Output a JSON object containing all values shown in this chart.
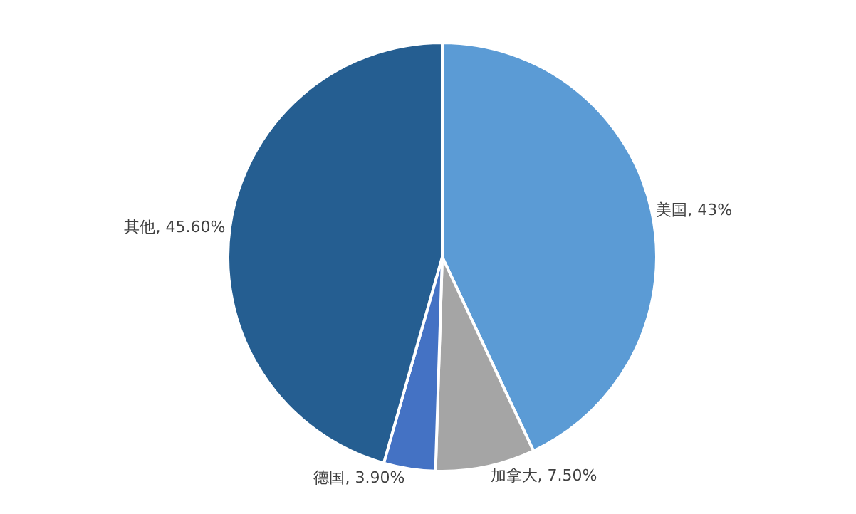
{
  "chart_data": {
    "type": "pie",
    "categories": [
      "美国",
      "加拿大",
      "德国",
      "其他"
    ],
    "values": [
      43,
      7.5,
      3.9,
      45.6
    ],
    "value_labels": [
      "43%",
      "7.50%",
      "3.90%",
      "45.60%"
    ],
    "colors": [
      "#5b9bd5",
      "#a5a5a5",
      "#4472c4",
      "#255e91"
    ],
    "legend": false
  }
}
